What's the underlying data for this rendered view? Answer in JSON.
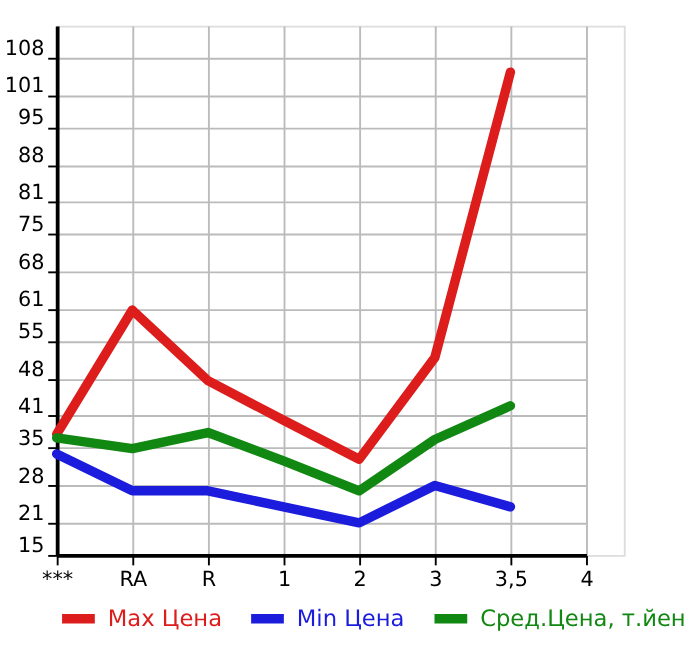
{
  "chart_data": {
    "type": "line",
    "categories": [
      "***",
      "RA",
      "R",
      "1",
      "2",
      "3",
      "3,5",
      "4"
    ],
    "series": [
      {
        "name": "Max Цена",
        "color": "#dd1c1c",
        "values": [
          37.6,
          60.8,
          47.6,
          40.2,
          32.9,
          51.9,
          105.3,
          null
        ]
      },
      {
        "name": "Min Цена",
        "color": "#1c1cdd",
        "values": [
          33.9,
          27.0,
          27.0,
          24.0,
          21.0,
          28.0,
          24.0,
          null
        ]
      },
      {
        "name": "Сред.Цена, т.йен",
        "color": "#118811",
        "values": [
          36.9,
          34.9,
          37.9,
          32.6,
          27.0,
          36.6,
          42.9,
          null
        ]
      }
    ],
    "ylim": [
      15,
      114
    ],
    "yticks": [
      15,
      21,
      28,
      35,
      41,
      48,
      55,
      61,
      68,
      75,
      81,
      88,
      95,
      101,
      108
    ],
    "grid": true,
    "legend": "bottom",
    "marker": "none",
    "line_style": "solid"
  }
}
